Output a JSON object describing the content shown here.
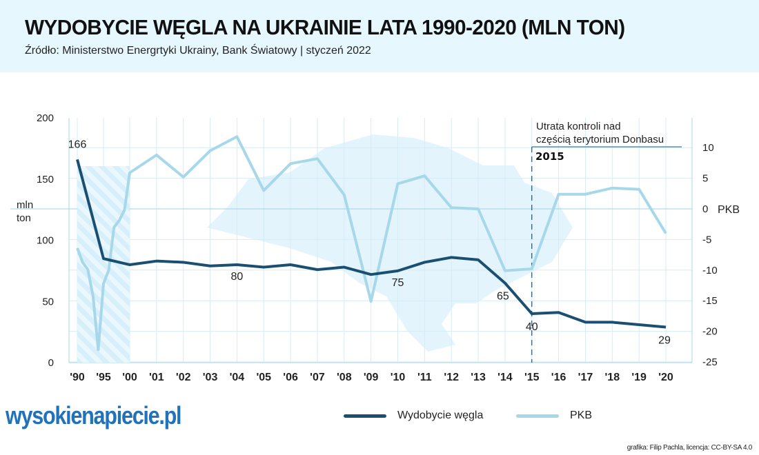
{
  "header": {
    "title": "WYDOBYCIE WĘGLA NA UKRAINIE LATA 1990-2020 (MLN TON)",
    "subtitle": "Źródło: Ministerstwo Energrtyki Ukrainy, Bank Światowy | styczeń 2022"
  },
  "chart_data": {
    "type": "line",
    "title": "WYDOBYCIE WĘGLA NA UKRAINIE LATA 1990-2020 (MLN TON)",
    "x_tick_labels": [
      "'90",
      "'95",
      "'00",
      "'01",
      "'02",
      "'03",
      "'04",
      "'05",
      "'06",
      "'07",
      "'08",
      "'09",
      "'10",
      "'11",
      "'12",
      "'13",
      "'14",
      "'15",
      "'16",
      "'17",
      "'18",
      "'19",
      "'20"
    ],
    "x_tick_years": [
      1990,
      1995,
      2000,
      2001,
      2002,
      2003,
      2004,
      2005,
      2006,
      2007,
      2008,
      2009,
      2010,
      2011,
      2012,
      2013,
      2014,
      2015,
      2016,
      2017,
      2018,
      2019,
      2020
    ],
    "left_axis": {
      "label_line1": "mln",
      "label_line2": "ton",
      "range": [
        0,
        200
      ],
      "ticks": [
        "0",
        "50",
        "100",
        "150",
        "200"
      ]
    },
    "right_axis": {
      "label": "PKB",
      "range": [
        -25,
        12
      ],
      "ticks": [
        "10",
        "5",
        "0",
        "-5",
        "-10",
        "-15",
        "-20",
        "-25"
      ]
    },
    "grid": true,
    "legend_position": "bottom-center",
    "series": [
      {
        "name": "Wydobycie węgla",
        "color": "#1b4f72",
        "points": [
          [
            1990,
            166
          ],
          [
            1995,
            85
          ],
          [
            2000,
            80
          ],
          [
            2001,
            83
          ],
          [
            2002,
            82
          ],
          [
            2003,
            79
          ],
          [
            2004,
            80
          ],
          [
            2005,
            78
          ],
          [
            2006,
            80
          ],
          [
            2007,
            76
          ],
          [
            2008,
            78
          ],
          [
            2009,
            72
          ],
          [
            2010,
            75
          ],
          [
            2011,
            82
          ],
          [
            2012,
            86
          ],
          [
            2013,
            84
          ],
          [
            2014,
            65
          ],
          [
            2015,
            40
          ],
          [
            2016,
            41
          ],
          [
            2017,
            33
          ],
          [
            2018,
            33
          ],
          [
            2019,
            31
          ],
          [
            2020,
            29
          ]
        ],
        "data_labels": [
          [
            1990,
            "166"
          ],
          [
            2004,
            "80"
          ],
          [
            2010,
            "75"
          ],
          [
            2014,
            "65"
          ],
          [
            2015,
            "40"
          ],
          [
            2020,
            "29"
          ]
        ]
      },
      {
        "name": "PKB",
        "color": "#a6d8ea",
        "axis": "right",
        "points": [
          [
            1990,
            -6.4
          ],
          [
            1991,
            -8.7
          ],
          [
            1992,
            -9.9
          ],
          [
            1993,
            -14.2
          ],
          [
            1994,
            -23
          ],
          [
            1995,
            -12.2
          ],
          [
            1996,
            -10
          ],
          [
            1997,
            -3
          ],
          [
            1998,
            -1.9
          ],
          [
            1999,
            -0.2
          ],
          [
            2000,
            5.9
          ],
          [
            2001,
            8.8
          ],
          [
            2002,
            5.2
          ],
          [
            2003,
            9.5
          ],
          [
            2004,
            11.8
          ],
          [
            2005,
            3.0
          ],
          [
            2006,
            7.4
          ],
          [
            2007,
            8.2
          ],
          [
            2008,
            2.3
          ],
          [
            2009,
            -15.1
          ],
          [
            2010,
            4.1
          ],
          [
            2011,
            5.4
          ],
          [
            2012,
            0.2
          ],
          [
            2013,
            0.0
          ],
          [
            2014,
            -10.1
          ],
          [
            2015,
            -9.8
          ],
          [
            2016,
            2.4
          ],
          [
            2017,
            2.4
          ],
          [
            2018,
            3.4
          ],
          [
            2019,
            3.2
          ],
          [
            2020,
            -4.0
          ]
        ]
      }
    ],
    "annotation": {
      "year": 2015,
      "year_label": "2015",
      "line1": "Utrata kontroli nad",
      "line2": "częścią terytorium Donbasu"
    },
    "hatched_range": [
      1990,
      2000
    ]
  },
  "legend": {
    "coal": "Wydobycie węgla",
    "pkb": "PKB"
  },
  "logo": "wysokienapiecie.pl",
  "credit": "grafika: Filip Pachla, licencja: CC-BY-SA 4.0"
}
